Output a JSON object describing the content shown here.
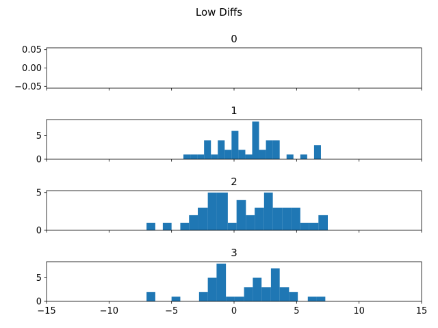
{
  "figure": {
    "title": "Low Diffs"
  },
  "colors": {
    "bar": "#1f77b4",
    "axis": "#000000",
    "background": "#ffffff"
  },
  "chart_data": [
    {
      "type": "bar",
      "title": "0",
      "xlim": [
        -15,
        15
      ],
      "ylim": [
        -0.055,
        0.055
      ],
      "xticks": [
        -15,
        -10,
        -5,
        0,
        5,
        10,
        15
      ],
      "show_xtick_labels": false,
      "yticks": [
        {
          "value": 0.05,
          "label": "0.05"
        },
        {
          "value": 0.0,
          "label": "0.00"
        },
        {
          "value": -0.05,
          "label": "−0.05"
        }
      ],
      "bins": []
    },
    {
      "type": "bar",
      "title": "1",
      "xlim": [
        -15,
        15
      ],
      "ylim": [
        0,
        8.4
      ],
      "xticks": [
        -15,
        -10,
        -5,
        0,
        5,
        10,
        15
      ],
      "show_xtick_labels": false,
      "yticks": [
        {
          "value": 0,
          "label": "0"
        },
        {
          "value": 5,
          "label": "5"
        }
      ],
      "bins": [
        {
          "x0": -4.05,
          "x1": -3.5,
          "count": 1
        },
        {
          "x0": -3.5,
          "x1": -2.95,
          "count": 1
        },
        {
          "x0": -2.95,
          "x1": -2.4,
          "count": 1
        },
        {
          "x0": -2.4,
          "x1": -1.85,
          "count": 4
        },
        {
          "x0": -1.85,
          "x1": -1.3,
          "count": 1
        },
        {
          "x0": -1.3,
          "x1": -0.75,
          "count": 4
        },
        {
          "x0": -0.75,
          "x1": -0.2,
          "count": 2
        },
        {
          "x0": -0.2,
          "x1": 0.35,
          "count": 6
        },
        {
          "x0": 0.35,
          "x1": 0.9,
          "count": 2
        },
        {
          "x0": 0.9,
          "x1": 1.45,
          "count": 1
        },
        {
          "x0": 1.45,
          "x1": 2.0,
          "count": 8
        },
        {
          "x0": 2.0,
          "x1": 2.55,
          "count": 2
        },
        {
          "x0": 2.55,
          "x1": 3.1,
          "count": 4
        },
        {
          "x0": 3.1,
          "x1": 3.65,
          "count": 4
        },
        {
          "x0": 4.2,
          "x1": 4.75,
          "count": 1
        },
        {
          "x0": 5.3,
          "x1": 5.85,
          "count": 1
        },
        {
          "x0": 6.4,
          "x1": 6.95,
          "count": 3
        }
      ]
    },
    {
      "type": "bar",
      "title": "2",
      "xlim": [
        -15,
        15
      ],
      "ylim": [
        0,
        5.25
      ],
      "xticks": [
        -15,
        -10,
        -5,
        0,
        5,
        10,
        15
      ],
      "show_xtick_labels": false,
      "yticks": [
        {
          "value": 0,
          "label": "0"
        },
        {
          "value": 5,
          "label": "5"
        }
      ],
      "bins": [
        {
          "x0": -7.0,
          "x1": -6.3,
          "count": 1
        },
        {
          "x0": -5.7,
          "x1": -5.0,
          "count": 1
        },
        {
          "x0": -4.3,
          "x1": -3.6,
          "count": 1
        },
        {
          "x0": -3.6,
          "x1": -2.9,
          "count": 2
        },
        {
          "x0": -2.9,
          "x1": -2.1,
          "count": 3
        },
        {
          "x0": -2.1,
          "x1": -1.4,
          "count": 5
        },
        {
          "x0": -1.4,
          "x1": -0.5,
          "count": 5
        },
        {
          "x0": -0.5,
          "x1": 0.2,
          "count": 1
        },
        {
          "x0": 0.2,
          "x1": 0.95,
          "count": 4
        },
        {
          "x0": 0.95,
          "x1": 1.65,
          "count": 2
        },
        {
          "x0": 1.65,
          "x1": 2.4,
          "count": 3
        },
        {
          "x0": 2.4,
          "x1": 3.1,
          "count": 5
        },
        {
          "x0": 3.1,
          "x1": 3.85,
          "count": 3
        },
        {
          "x0": 3.85,
          "x1": 4.55,
          "count": 3
        },
        {
          "x0": 4.55,
          "x1": 5.3,
          "count": 3
        },
        {
          "x0": 5.3,
          "x1": 6.0,
          "count": 1
        },
        {
          "x0": 6.0,
          "x1": 6.75,
          "count": 1
        },
        {
          "x0": 6.75,
          "x1": 7.5,
          "count": 2
        }
      ]
    },
    {
      "type": "bar",
      "title": "3",
      "xlim": [
        -15,
        15
      ],
      "ylim": [
        0,
        8.4
      ],
      "xticks": [
        -15,
        -10,
        -5,
        0,
        5,
        10,
        15
      ],
      "show_xtick_labels": true,
      "xtick_labels": [
        "−15",
        "−10",
        "−5",
        "0",
        "5",
        "10",
        "15"
      ],
      "yticks": [
        {
          "value": 0,
          "label": "0"
        },
        {
          "value": 5,
          "label": "5"
        }
      ],
      "bins": [
        {
          "x0": -7.0,
          "x1": -6.3,
          "count": 2
        },
        {
          "x0": -5.0,
          "x1": -4.3,
          "count": 1
        },
        {
          "x0": -2.8,
          "x1": -2.1,
          "count": 2
        },
        {
          "x0": -2.1,
          "x1": -1.4,
          "count": 5
        },
        {
          "x0": -1.4,
          "x1": -0.65,
          "count": 8
        },
        {
          "x0": -0.65,
          "x1": 0.05,
          "count": 1
        },
        {
          "x0": 0.05,
          "x1": 0.8,
          "count": 1
        },
        {
          "x0": 0.8,
          "x1": 1.5,
          "count": 3
        },
        {
          "x0": 1.5,
          "x1": 2.2,
          "count": 5
        },
        {
          "x0": 2.2,
          "x1": 2.95,
          "count": 3
        },
        {
          "x0": 2.95,
          "x1": 3.65,
          "count": 7
        },
        {
          "x0": 3.65,
          "x1": 4.4,
          "count": 3
        },
        {
          "x0": 4.4,
          "x1": 5.1,
          "count": 2
        },
        {
          "x0": 5.9,
          "x1": 6.6,
          "count": 1
        },
        {
          "x0": 6.6,
          "x1": 7.3,
          "count": 1
        }
      ]
    }
  ]
}
